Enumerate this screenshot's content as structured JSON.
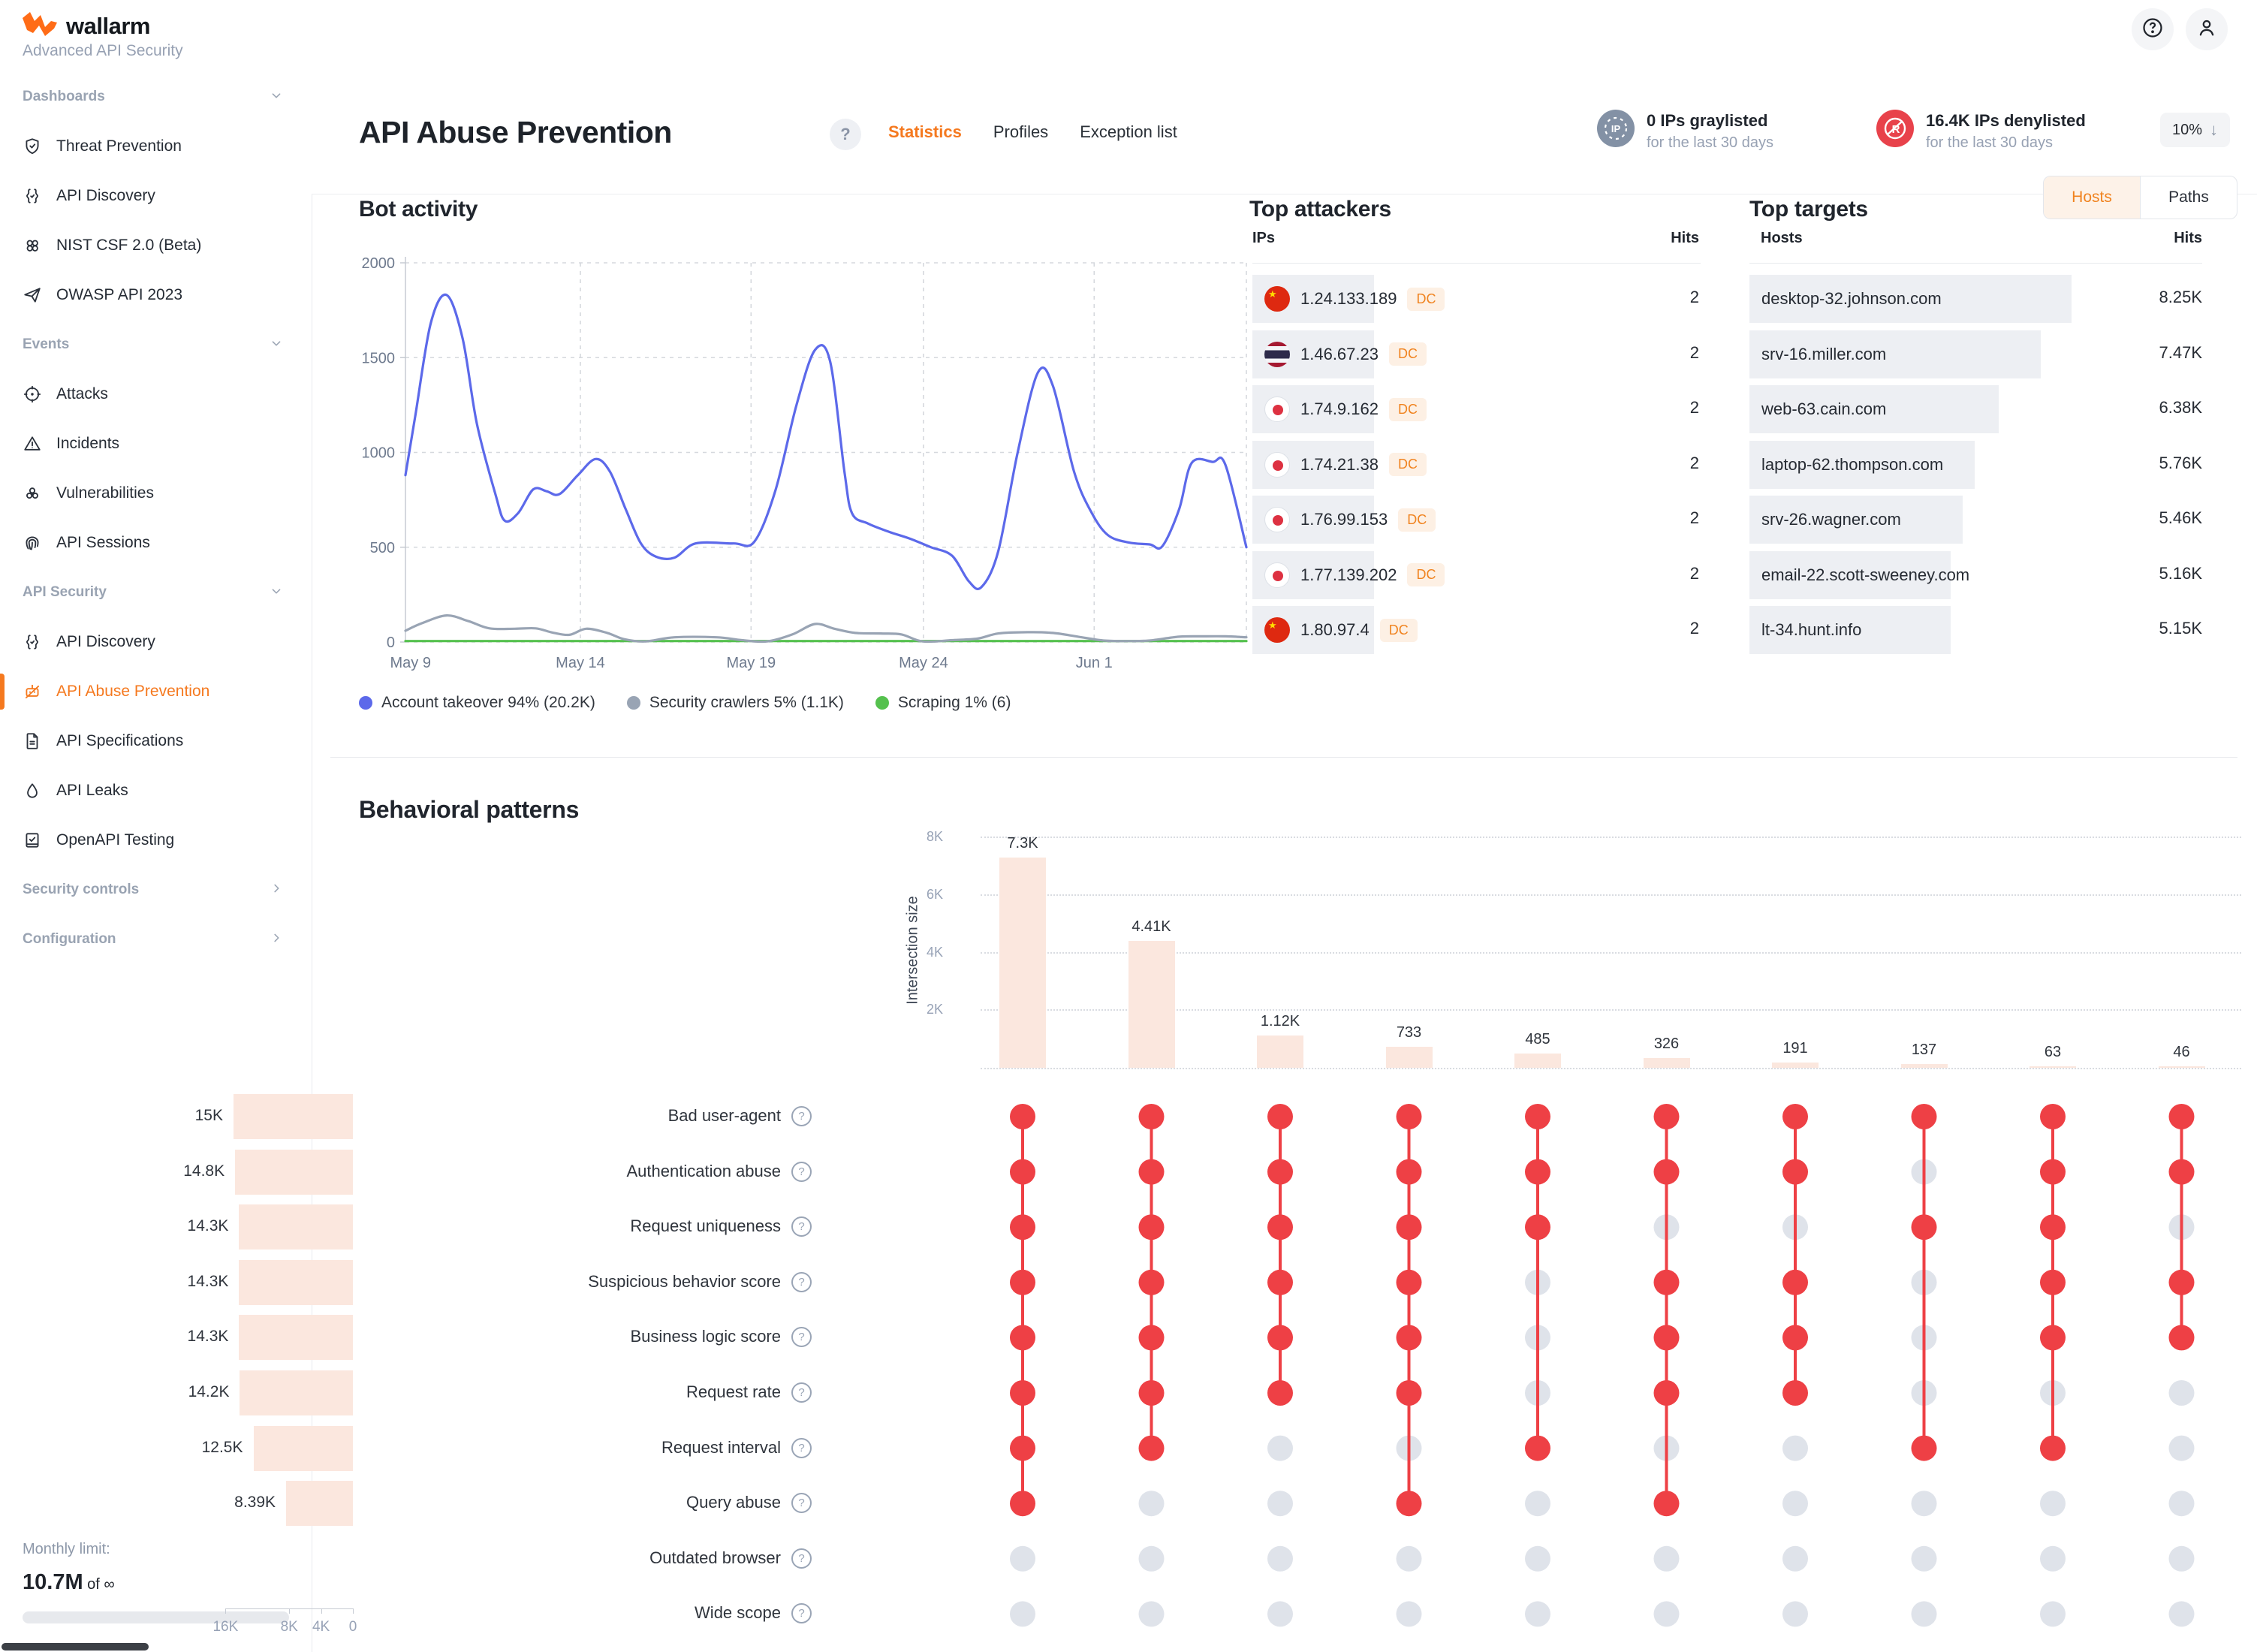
{
  "app": {
    "brand": "wallarm",
    "subtitle": "Advanced API Security"
  },
  "sidebar": {
    "sections": [
      {
        "label": "Dashboards",
        "chevron": "down",
        "items": [
          {
            "icon": "shield-icon",
            "label": "Threat Prevention"
          },
          {
            "icon": "braces-icon",
            "label": "API Discovery"
          },
          {
            "icon": "knot-icon",
            "label": "NIST CSF 2.0 (Beta)"
          },
          {
            "icon": "plane-icon",
            "label": "OWASP API 2023"
          }
        ]
      },
      {
        "label": "Events",
        "chevron": "down",
        "items": [
          {
            "icon": "target-icon",
            "label": "Attacks"
          },
          {
            "icon": "warning-icon",
            "label": "Incidents"
          },
          {
            "icon": "biohazard-icon",
            "label": "Vulnerabilities"
          },
          {
            "icon": "fingerprint-icon",
            "label": "API Sessions"
          }
        ]
      },
      {
        "label": "API Security",
        "chevron": "down",
        "items": [
          {
            "icon": "braces-icon",
            "label": "API Discovery"
          },
          {
            "icon": "bot-icon",
            "label": "API Abuse Prevention",
            "active": true
          },
          {
            "icon": "document-icon",
            "label": "API Specifications"
          },
          {
            "icon": "drop-icon",
            "label": "API Leaks"
          },
          {
            "icon": "checklist-icon",
            "label": "OpenAPI Testing"
          }
        ]
      },
      {
        "label": "Security controls",
        "chevron": "right",
        "items": []
      },
      {
        "label": "Configuration",
        "chevron": "right",
        "items": []
      }
    ],
    "monthly_limit": {
      "label": "Monthly limit:",
      "used": "10.7M",
      "of_text": "of",
      "total": "∞"
    }
  },
  "header": {
    "title": "API Abuse Prevention",
    "tabs": [
      {
        "label": "Statistics",
        "active": true
      },
      {
        "label": "Profiles",
        "active": false
      },
      {
        "label": "Exception list",
        "active": false
      }
    ],
    "graylisted": {
      "headline": "0 IPs graylisted",
      "period": "for the last 30 days",
      "icon_text": "IP"
    },
    "denylisted": {
      "headline": "16.4K IPs denylisted",
      "period": "for the last 30 days",
      "change": "10%",
      "direction": "down"
    }
  },
  "top_attackers": {
    "title": "Top attackers",
    "columns": [
      "IPs",
      "Hits"
    ],
    "rows": [
      {
        "flag": "cn",
        "ip": "1.24.133.189",
        "tag": "DC",
        "hits": "2"
      },
      {
        "flag": "th",
        "ip": "1.46.67.23",
        "tag": "DC",
        "hits": "2"
      },
      {
        "flag": "jp",
        "ip": "1.74.9.162",
        "tag": "DC",
        "hits": "2"
      },
      {
        "flag": "jp",
        "ip": "1.74.21.38",
        "tag": "DC",
        "hits": "2"
      },
      {
        "flag": "jp",
        "ip": "1.76.99.153",
        "tag": "DC",
        "hits": "2"
      },
      {
        "flag": "jp",
        "ip": "1.77.139.202",
        "tag": "DC",
        "hits": "2"
      },
      {
        "flag": "cn",
        "ip": "1.80.97.4",
        "tag": "DC",
        "hits": "2"
      }
    ]
  },
  "top_targets": {
    "title": "Top targets",
    "toggle": [
      {
        "label": "Hosts",
        "active": true
      },
      {
        "label": "Paths",
        "active": false
      }
    ],
    "columns": [
      "Hosts",
      "Hits"
    ],
    "rows": [
      {
        "host": "desktop-32.johnson.com",
        "hits": "8.25K",
        "value": 8.25
      },
      {
        "host": "srv-16.miller.com",
        "hits": "7.47K",
        "value": 7.47
      },
      {
        "host": "web-63.cain.com",
        "hits": "6.38K",
        "value": 6.38
      },
      {
        "host": "laptop-62.thompson.com",
        "hits": "5.76K",
        "value": 5.76
      },
      {
        "host": "srv-26.wagner.com",
        "hits": "5.46K",
        "value": 5.46
      },
      {
        "host": "email-22.scott-sweeney.com",
        "hits": "5.16K",
        "value": 5.16
      },
      {
        "host": "lt-34.hunt.info",
        "hits": "5.15K",
        "value": 5.15
      }
    ]
  },
  "chart_data": [
    {
      "id": "bot_activity",
      "type": "line",
      "title": "Bot activity",
      "ylim": [
        0,
        2000
      ],
      "y_ticks": [
        "2000",
        "1500",
        "1000",
        "500",
        "0"
      ],
      "x_ticks": [
        {
          "label": "May 9",
          "f": 0.006
        },
        {
          "label": "May 14",
          "f": 0.208
        },
        {
          "label": "May 19",
          "f": 0.411
        },
        {
          "label": "May 24",
          "f": 0.616
        },
        {
          "label": "Jun 1",
          "f": 0.819
        }
      ],
      "grid": "dashed",
      "legend_position": "bottom",
      "series": [
        {
          "name": "Account takeover 94% (20.2K)",
          "color": "#5c69ea",
          "points": [
            [
              0.0,
              880
            ],
            [
              0.012,
              1200
            ],
            [
              0.03,
              1680
            ],
            [
              0.049,
              1830
            ],
            [
              0.068,
              1600
            ],
            [
              0.085,
              1150
            ],
            [
              0.107,
              780
            ],
            [
              0.118,
              640
            ],
            [
              0.134,
              680
            ],
            [
              0.152,
              805
            ],
            [
              0.168,
              795
            ],
            [
              0.183,
              780
            ],
            [
              0.205,
              880
            ],
            [
              0.226,
              965
            ],
            [
              0.243,
              900
            ],
            [
              0.262,
              700
            ],
            [
              0.28,
              520
            ],
            [
              0.298,
              450
            ],
            [
              0.32,
              445
            ],
            [
              0.345,
              520
            ],
            [
              0.39,
              520
            ],
            [
              0.415,
              530
            ],
            [
              0.44,
              800
            ],
            [
              0.465,
              1250
            ],
            [
              0.487,
              1540
            ],
            [
              0.505,
              1480
            ],
            [
              0.522,
              900
            ],
            [
              0.531,
              680
            ],
            [
              0.55,
              625
            ],
            [
              0.576,
              580
            ],
            [
              0.6,
              545
            ],
            [
              0.625,
              500
            ],
            [
              0.65,
              455
            ],
            [
              0.67,
              320
            ],
            [
              0.685,
              290
            ],
            [
              0.705,
              480
            ],
            [
              0.728,
              1000
            ],
            [
              0.752,
              1420
            ],
            [
              0.77,
              1350
            ],
            [
              0.795,
              900
            ],
            [
              0.815,
              690
            ],
            [
              0.835,
              565
            ],
            [
              0.86,
              525
            ],
            [
              0.885,
              515
            ],
            [
              0.9,
              505
            ],
            [
              0.92,
              700
            ],
            [
              0.935,
              945
            ],
            [
              0.96,
              950
            ],
            [
              0.975,
              935
            ],
            [
              1.0,
              500
            ]
          ]
        },
        {
          "name": "Security crawlers 5% (1.1K)",
          "color": "#99a4b4",
          "points": [
            [
              0.0,
              60
            ],
            [
              0.02,
              100
            ],
            [
              0.049,
              140
            ],
            [
              0.075,
              110
            ],
            [
              0.1,
              72
            ],
            [
              0.13,
              70
            ],
            [
              0.155,
              72
            ],
            [
              0.175,
              50
            ],
            [
              0.195,
              38
            ],
            [
              0.215,
              70
            ],
            [
              0.24,
              48
            ],
            [
              0.26,
              15
            ],
            [
              0.285,
              3
            ],
            [
              0.32,
              25
            ],
            [
              0.37,
              25
            ],
            [
              0.4,
              10
            ],
            [
              0.43,
              3
            ],
            [
              0.46,
              40
            ],
            [
              0.487,
              95
            ],
            [
              0.51,
              70
            ],
            [
              0.535,
              48
            ],
            [
              0.565,
              45
            ],
            [
              0.59,
              40
            ],
            [
              0.615,
              3
            ],
            [
              0.65,
              10
            ],
            [
              0.68,
              18
            ],
            [
              0.705,
              45
            ],
            [
              0.74,
              52
            ],
            [
              0.77,
              48
            ],
            [
              0.8,
              28
            ],
            [
              0.83,
              8
            ],
            [
              0.86,
              5
            ],
            [
              0.885,
              8
            ],
            [
              0.92,
              28
            ],
            [
              0.95,
              30
            ],
            [
              0.975,
              30
            ],
            [
              1.0,
              25
            ]
          ]
        },
        {
          "name": "Scraping 1% (6)",
          "color": "#55c14e",
          "points": [
            [
              0.0,
              5
            ],
            [
              0.5,
              5
            ],
            [
              1.0,
              5
            ]
          ]
        }
      ]
    },
    {
      "id": "behavioral_patterns",
      "type": "upset",
      "title": "Behavioral patterns",
      "ylabel": "Intersection size",
      "intersection_axis_ticks": [
        "2K",
        "4K",
        "6K",
        "8K"
      ],
      "intersection_ylim": [
        0,
        8000
      ],
      "intersections": [
        {
          "label": "7.3K",
          "value": 7300,
          "rows": [
            0,
            1,
            2,
            3,
            4,
            5,
            6,
            7
          ]
        },
        {
          "label": "4.41K",
          "value": 4410,
          "rows": [
            0,
            1,
            2,
            3,
            4,
            5,
            6
          ]
        },
        {
          "label": "1.12K",
          "value": 1120,
          "rows": [
            0,
            1,
            2,
            3,
            4,
            5
          ]
        },
        {
          "label": "733",
          "value": 733,
          "rows": [
            0,
            1,
            2,
            3,
            4,
            5,
            7
          ]
        },
        {
          "label": "485",
          "value": 485,
          "rows": [
            0,
            1,
            2,
            6
          ]
        },
        {
          "label": "326",
          "value": 326,
          "rows": [
            0,
            1,
            3,
            4,
            5,
            7
          ]
        },
        {
          "label": "191",
          "value": 191,
          "rows": [
            0,
            1,
            3,
            4,
            5
          ]
        },
        {
          "label": "137",
          "value": 137,
          "rows": [
            0,
            2,
            6
          ]
        },
        {
          "label": "63",
          "value": 63,
          "rows": [
            0,
            1,
            2,
            3,
            4,
            6
          ]
        },
        {
          "label": "46",
          "value": 46,
          "rows": [
            0,
            1,
            3,
            4
          ]
        }
      ],
      "sets": [
        {
          "label": "Bad user-agent",
          "size_label": "15K",
          "size": 15000
        },
        {
          "label": "Authentication abuse",
          "size_label": "14.8K",
          "size": 14800
        },
        {
          "label": "Request uniqueness",
          "size_label": "14.3K",
          "size": 14300
        },
        {
          "label": "Suspicious behavior score",
          "size_label": "14.3K",
          "size": 14300
        },
        {
          "label": "Business logic score",
          "size_label": "14.3K",
          "size": 14300
        },
        {
          "label": "Request rate",
          "size_label": "14.2K",
          "size": 14200
        },
        {
          "label": "Request interval",
          "size_label": "12.5K",
          "size": 12500
        },
        {
          "label": "Query abuse",
          "size_label": "8.39K",
          "size": 8390
        },
        {
          "label": "Outdated browser",
          "size_label": "",
          "size": 0
        },
        {
          "label": "Wide scope",
          "size_label": "",
          "size": 0
        }
      ],
      "set_axis_ticks": [
        {
          "label": "16K",
          "value": 16000
        },
        {
          "label": "8K",
          "value": 8000
        },
        {
          "label": "4K",
          "value": 4000
        },
        {
          "label": "0",
          "value": 0
        }
      ],
      "colors": {
        "bar": "#fbe7de",
        "dot_on": "#ee4045",
        "dot_off": "#dfe3ea"
      }
    }
  ]
}
